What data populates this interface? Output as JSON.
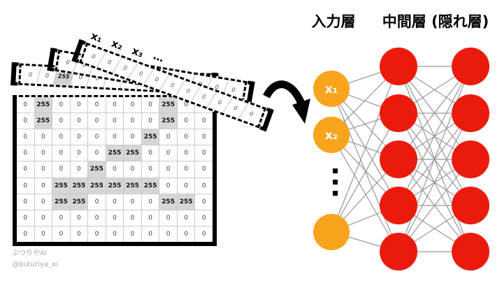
{
  "header": {
    "input_layer_label": "入力層",
    "hidden_layer_label": "中間層 (隠れ層)"
  },
  "colors": {
    "input_node": "#F8A41D",
    "hidden_node": "#EA1B0D",
    "edge": "#969696",
    "highlight_cell": "#D6D6D6",
    "node_label_text": "#FFFFFF"
  },
  "icons": {
    "flatten_arrow": "curved-arrow-down-right",
    "vertical_ellipsis": "⋮",
    "strip_brackets": "[ ]"
  },
  "pixel_matrix": {
    "highlight_value": "255",
    "rows": [
      [
        "0",
        "255",
        "0",
        "0",
        "0",
        "0",
        "0",
        "0",
        "255",
        "0",
        "0"
      ],
      [
        "0",
        "255",
        "0",
        "0",
        "0",
        "0",
        "0",
        "0",
        "255",
        "0",
        "0"
      ],
      [
        "0",
        "0",
        "0",
        "0",
        "0",
        "0",
        "0",
        "255",
        "0",
        "0",
        "0"
      ],
      [
        "0",
        "0",
        "0",
        "0",
        "0",
        "255",
        "255",
        "0",
        "0",
        "0",
        "0"
      ],
      [
        "0",
        "0",
        "0",
        "0",
        "255",
        "0",
        "0",
        "0",
        "0",
        "0",
        "0"
      ],
      [
        "0",
        "0",
        "255",
        "255",
        "255",
        "255",
        "255",
        "255",
        "0",
        "0",
        "0"
      ],
      [
        "0",
        "0",
        "255",
        "255",
        "0",
        "0",
        "0",
        "0",
        "255",
        "255",
        "0"
      ],
      [
        "0",
        "0",
        "0",
        "0",
        "0",
        "0",
        "0",
        "0",
        "0",
        "0",
        "0"
      ],
      [
        "0",
        "0",
        "0",
        "0",
        "0",
        "0",
        "0",
        "0",
        "0",
        "0",
        "0"
      ]
    ]
  },
  "flatten_strips": [
    {
      "id": "vector-strip-1",
      "labels": [
        "x₁",
        "x₂",
        "x₃",
        "⋯"
      ],
      "values": [
        "0",
        "0",
        "0",
        "0",
        "0",
        "0",
        "0",
        "0",
        "0",
        "0",
        "0"
      ]
    },
    {
      "id": "vector-strip-2",
      "values": [
        "0",
        "0",
        "0",
        "0",
        "255",
        "255",
        "0",
        "0",
        "0",
        "0",
        "0"
      ]
    },
    {
      "id": "vector-strip-3",
      "values": [
        "0",
        "0",
        "255",
        "0",
        "0",
        "0",
        "0",
        "0",
        "0",
        "0",
        "0"
      ]
    }
  ],
  "network": {
    "input_nodes": [
      {
        "label": "x₁"
      },
      {
        "label": "x₂"
      },
      {
        "label": ""
      }
    ],
    "hidden1_count": 5,
    "hidden2_count": 5
  },
  "credit": {
    "name": "ぶつりやAI",
    "handle": "@buturiya_ai"
  }
}
